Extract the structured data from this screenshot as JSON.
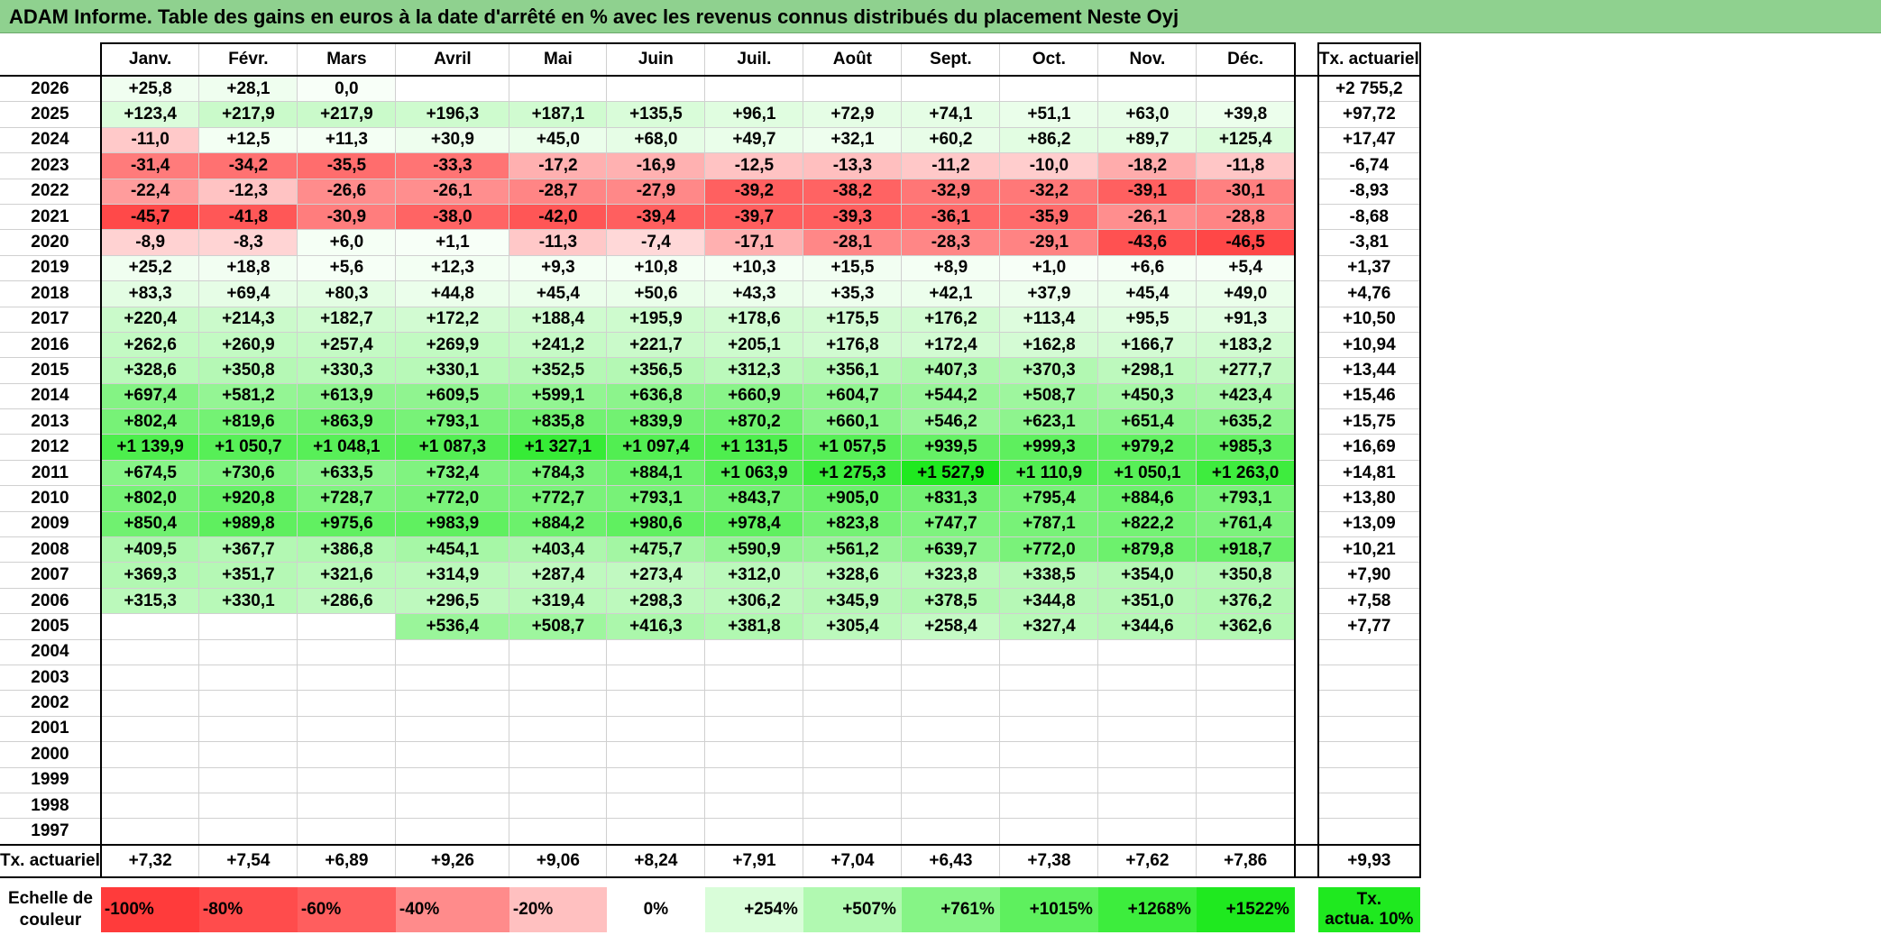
{
  "title": "ADAM Informe. Table des gains en euros à la date d'arrêté en % avec les revenus connus distribués du placement Neste Oyj",
  "months": [
    "Janv.",
    "Févr.",
    "Mars",
    "Avril",
    "Mai",
    "Juin",
    "Juil.",
    "Août",
    "Sept.",
    "Oct.",
    "Nov.",
    "Déc."
  ],
  "total_header": "Tx. actuariel",
  "rows": [
    {
      "year": "2026",
      "values": [
        "+25,8",
        "+28,1",
        "0,0",
        "",
        "",
        "",
        "",
        "",
        "",
        "",
        "",
        ""
      ],
      "total": "+2 755,2"
    },
    {
      "year": "2025",
      "values": [
        "+123,4",
        "+217,9",
        "+217,9",
        "+196,3",
        "+187,1",
        "+135,5",
        "+96,1",
        "+72,9",
        "+74,1",
        "+51,1",
        "+63,0",
        "+39,8"
      ],
      "total": "+97,72"
    },
    {
      "year": "2024",
      "values": [
        "-11,0",
        "+12,5",
        "+11,3",
        "+30,9",
        "+45,0",
        "+68,0",
        "+49,7",
        "+32,1",
        "+60,2",
        "+86,2",
        "+89,7",
        "+125,4"
      ],
      "total": "+17,47"
    },
    {
      "year": "2023",
      "values": [
        "-31,4",
        "-34,2",
        "-35,5",
        "-33,3",
        "-17,2",
        "-16,9",
        "-12,5",
        "-13,3",
        "-11,2",
        "-10,0",
        "-18,2",
        "-11,8"
      ],
      "total": "-6,74"
    },
    {
      "year": "2022",
      "values": [
        "-22,4",
        "-12,3",
        "-26,6",
        "-26,1",
        "-28,7",
        "-27,9",
        "-39,2",
        "-38,2",
        "-32,9",
        "-32,2",
        "-39,1",
        "-30,1"
      ],
      "total": "-8,93"
    },
    {
      "year": "2021",
      "values": [
        "-45,7",
        "-41,8",
        "-30,9",
        "-38,0",
        "-42,0",
        "-39,4",
        "-39,7",
        "-39,3",
        "-36,1",
        "-35,9",
        "-26,1",
        "-28,8"
      ],
      "total": "-8,68"
    },
    {
      "year": "2020",
      "values": [
        "-8,9",
        "-8,3",
        "+6,0",
        "+1,1",
        "-11,3",
        "-7,4",
        "-17,1",
        "-28,1",
        "-28,3",
        "-29,1",
        "-43,6",
        "-46,5"
      ],
      "total": "-3,81"
    },
    {
      "year": "2019",
      "values": [
        "+25,2",
        "+18,8",
        "+5,6",
        "+12,3",
        "+9,3",
        "+10,8",
        "+10,3",
        "+15,5",
        "+8,9",
        "+1,0",
        "+6,6",
        "+5,4"
      ],
      "total": "+1,37"
    },
    {
      "year": "2018",
      "values": [
        "+83,3",
        "+69,4",
        "+80,3",
        "+44,8",
        "+45,4",
        "+50,6",
        "+43,3",
        "+35,3",
        "+42,1",
        "+37,9",
        "+45,4",
        "+49,0"
      ],
      "total": "+4,76"
    },
    {
      "year": "2017",
      "values": [
        "+220,4",
        "+214,3",
        "+182,7",
        "+172,2",
        "+188,4",
        "+195,9",
        "+178,6",
        "+175,5",
        "+176,2",
        "+113,4",
        "+95,5",
        "+91,3"
      ],
      "total": "+10,50"
    },
    {
      "year": "2016",
      "values": [
        "+262,6",
        "+260,9",
        "+257,4",
        "+269,9",
        "+241,2",
        "+221,7",
        "+205,1",
        "+176,8",
        "+172,4",
        "+162,8",
        "+166,7",
        "+183,2"
      ],
      "total": "+10,94"
    },
    {
      "year": "2015",
      "values": [
        "+328,6",
        "+350,8",
        "+330,3",
        "+330,1",
        "+352,5",
        "+356,5",
        "+312,3",
        "+356,1",
        "+407,3",
        "+370,3",
        "+298,1",
        "+277,7"
      ],
      "total": "+13,44"
    },
    {
      "year": "2014",
      "values": [
        "+697,4",
        "+581,2",
        "+613,9",
        "+609,5",
        "+599,1",
        "+636,8",
        "+660,9",
        "+604,7",
        "+544,2",
        "+508,7",
        "+450,3",
        "+423,4"
      ],
      "total": "+15,46"
    },
    {
      "year": "2013",
      "values": [
        "+802,4",
        "+819,6",
        "+863,9",
        "+793,1",
        "+835,8",
        "+839,9",
        "+870,2",
        "+660,1",
        "+546,2",
        "+623,1",
        "+651,4",
        "+635,2"
      ],
      "total": "+15,75"
    },
    {
      "year": "2012",
      "values": [
        "+1 139,9",
        "+1 050,7",
        "+1 048,1",
        "+1 087,3",
        "+1 327,1",
        "+1 097,4",
        "+1 131,5",
        "+1 057,5",
        "+939,5",
        "+999,3",
        "+979,2",
        "+985,3"
      ],
      "total": "+16,69"
    },
    {
      "year": "2011",
      "values": [
        "+674,5",
        "+730,6",
        "+633,5",
        "+732,4",
        "+784,3",
        "+884,1",
        "+1 063,9",
        "+1 275,3",
        "+1 527,9",
        "+1 110,9",
        "+1 050,1",
        "+1 263,0"
      ],
      "total": "+14,81"
    },
    {
      "year": "2010",
      "values": [
        "+802,0",
        "+920,8",
        "+728,7",
        "+772,0",
        "+772,7",
        "+793,1",
        "+843,7",
        "+905,0",
        "+831,3",
        "+795,4",
        "+884,6",
        "+793,1"
      ],
      "total": "+13,80"
    },
    {
      "year": "2009",
      "values": [
        "+850,4",
        "+989,8",
        "+975,6",
        "+983,9",
        "+884,2",
        "+980,6",
        "+978,4",
        "+823,8",
        "+747,7",
        "+787,1",
        "+822,2",
        "+761,4"
      ],
      "total": "+13,09"
    },
    {
      "year": "2008",
      "values": [
        "+409,5",
        "+367,7",
        "+386,8",
        "+454,1",
        "+403,4",
        "+475,7",
        "+590,9",
        "+561,2",
        "+639,7",
        "+772,0",
        "+879,8",
        "+918,7"
      ],
      "total": "+10,21"
    },
    {
      "year": "2007",
      "values": [
        "+369,3",
        "+351,7",
        "+321,6",
        "+314,9",
        "+287,4",
        "+273,4",
        "+312,0",
        "+328,6",
        "+323,8",
        "+338,5",
        "+354,0",
        "+350,8"
      ],
      "total": "+7,90"
    },
    {
      "year": "2006",
      "values": [
        "+315,3",
        "+330,1",
        "+286,6",
        "+296,5",
        "+319,4",
        "+298,3",
        "+306,2",
        "+345,9",
        "+378,5",
        "+344,8",
        "+351,0",
        "+376,2"
      ],
      "total": "+7,58"
    },
    {
      "year": "2005",
      "values": [
        "",
        "",
        "",
        "+536,4",
        "+508,7",
        "+416,3",
        "+381,8",
        "+305,4",
        "+258,4",
        "+327,4",
        "+344,6",
        "+362,6"
      ],
      "total": "+7,77"
    },
    {
      "year": "2004",
      "values": [
        "",
        "",
        "",
        "",
        "",
        "",
        "",
        "",
        "",
        "",
        "",
        ""
      ],
      "total": ""
    },
    {
      "year": "2003",
      "values": [
        "",
        "",
        "",
        "",
        "",
        "",
        "",
        "",
        "",
        "",
        "",
        ""
      ],
      "total": ""
    },
    {
      "year": "2002",
      "values": [
        "",
        "",
        "",
        "",
        "",
        "",
        "",
        "",
        "",
        "",
        "",
        ""
      ],
      "total": ""
    },
    {
      "year": "2001",
      "values": [
        "",
        "",
        "",
        "",
        "",
        "",
        "",
        "",
        "",
        "",
        "",
        ""
      ],
      "total": ""
    },
    {
      "year": "2000",
      "values": [
        "",
        "",
        "",
        "",
        "",
        "",
        "",
        "",
        "",
        "",
        "",
        ""
      ],
      "total": ""
    },
    {
      "year": "1999",
      "values": [
        "",
        "",
        "",
        "",
        "",
        "",
        "",
        "",
        "",
        "",
        "",
        ""
      ],
      "total": ""
    },
    {
      "year": "1998",
      "values": [
        "",
        "",
        "",
        "",
        "",
        "",
        "",
        "",
        "",
        "",
        "",
        ""
      ],
      "total": ""
    },
    {
      "year": "1997",
      "values": [
        "",
        "",
        "",
        "",
        "",
        "",
        "",
        "",
        "",
        "",
        "",
        ""
      ],
      "total": ""
    }
  ],
  "footer": {
    "label": "Tx. actuariel",
    "values": [
      "+7,32",
      "+7,54",
      "+6,89",
      "+9,26",
      "+9,06",
      "+8,24",
      "+7,91",
      "+7,04",
      "+6,43",
      "+7,38",
      "+7,62",
      "+7,86"
    ],
    "total": "+9,93"
  },
  "legend": {
    "label_line1": "Echelle de",
    "label_line2": "couleur",
    "steps": [
      {
        "label": "-100%",
        "color": "#ff3b3b"
      },
      {
        "label": "-80%",
        "color": "#ff4c4c"
      },
      {
        "label": "-60%",
        "color": "#ff5e5e"
      },
      {
        "label": "-40%",
        "color": "#ff8b8b"
      },
      {
        "label": "-20%",
        "color": "#ffc0c0"
      },
      {
        "label": "0%",
        "color": "#ffffff"
      },
      {
        "label": "+254%",
        "color": "#d9fdd9"
      },
      {
        "label": "+507%",
        "color": "#b1f9b1"
      },
      {
        "label": "+761%",
        "color": "#86f486"
      },
      {
        "label": "+1015%",
        "color": "#5ef05e"
      },
      {
        "label": "+1268%",
        "color": "#3ded3d"
      },
      {
        "label": "+1522%",
        "color": "#1fe91f"
      }
    ],
    "total_line1": "Tx.",
    "total_line2": "actua. 10%",
    "total_color": "#1fe91f"
  }
}
